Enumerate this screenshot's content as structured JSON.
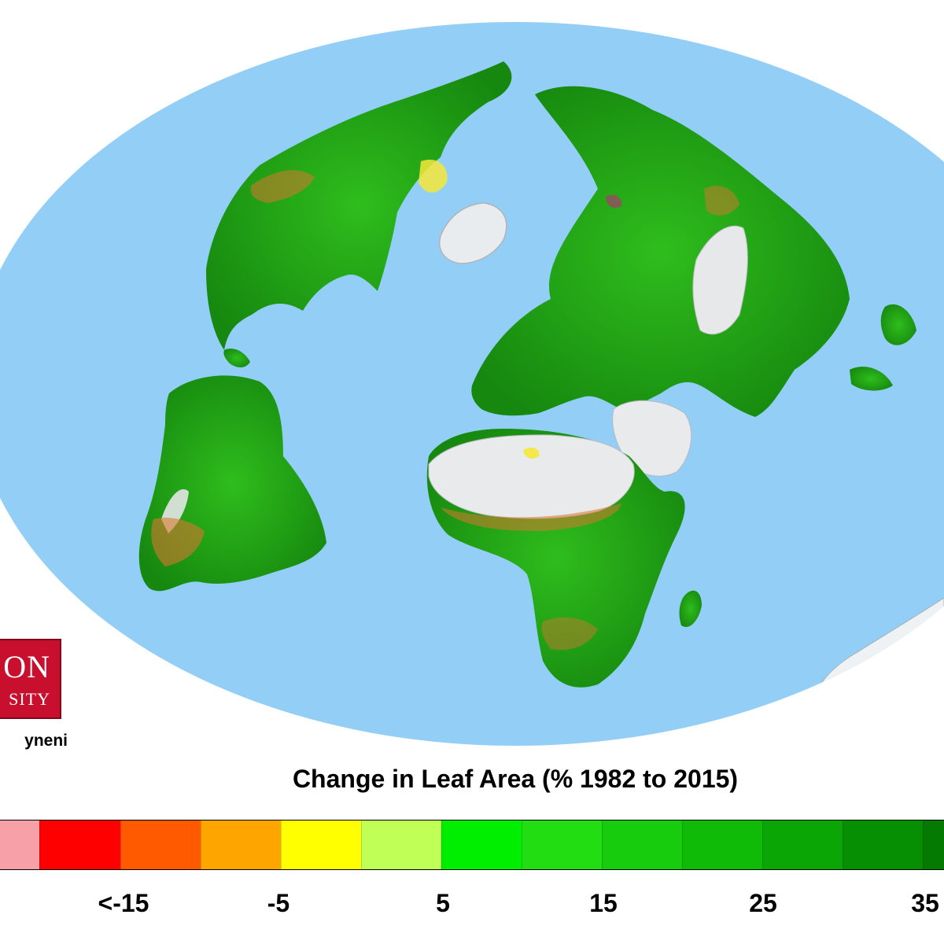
{
  "logo": {
    "line1": "ON",
    "line2": "SITY"
  },
  "credit": "yneni",
  "legend": {
    "title": "Change in Leaf Area (% 1982 to 2015)",
    "colors": [
      "#f7a0a8",
      "#ff0000",
      "#ff5a00",
      "#ffa500",
      "#ffff00",
      "#c0ff55",
      "#00ee00",
      "#22dd11",
      "#17cc0c",
      "#10bb08",
      "#0aa605",
      "#068f03",
      "#047a02"
    ],
    "tick_labels": [
      "<-15",
      "-5",
      "5",
      "15",
      "25",
      "35"
    ]
  },
  "colors": {
    "ocean": "#93cef7",
    "land_green": "#38c31e",
    "land_dark_green": "#1a8d16",
    "desert": "#e8e8ea",
    "ice": "#f0f4f6",
    "browning": "#d9762e",
    "logo_red": "#c8102e"
  }
}
